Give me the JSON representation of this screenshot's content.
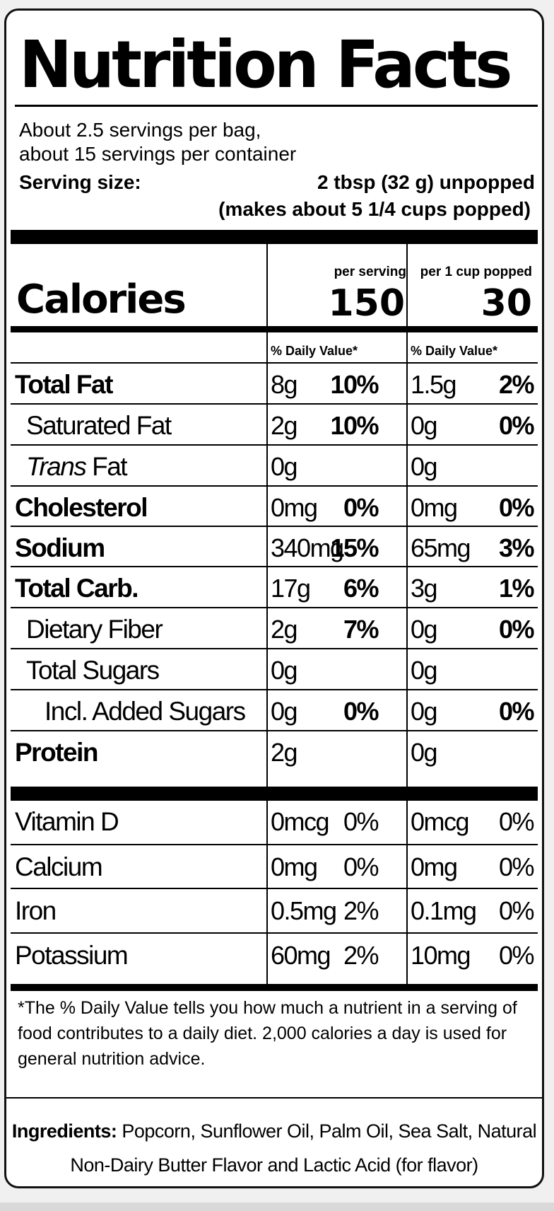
{
  "title": "Nutrition Facts",
  "servings": {
    "line1": "About 2.5 servings per bag,",
    "line2": "about 15 servings per container",
    "size_label": "Serving size:",
    "size_value": "2 tbsp (32 g) unpopped",
    "size_note": "(makes about 5 1/4 cups popped)"
  },
  "columns": {
    "per_serving": "per serving",
    "per_cup": "per 1 cup popped",
    "dv_label": "% Daily Value*"
  },
  "calories": {
    "label": "Calories",
    "per_serving": "150",
    "per_cup": "30"
  },
  "nutrients": [
    {
      "name": "Total Fat",
      "amount1": "8g",
      "dv1": "10%",
      "amount2": "1.5g",
      "dv2": "2%"
    },
    {
      "name": "Saturated Fat",
      "amount1": "2g",
      "dv1": "10%",
      "amount2": "0g",
      "dv2": "0%"
    },
    {
      "name_italic": "Trans",
      "name_rest": " Fat",
      "amount1": "0g",
      "dv1": "",
      "amount2": "0g",
      "dv2": ""
    },
    {
      "name": "Cholesterol",
      "amount1": "0mg",
      "dv1": "0%",
      "amount2": "0mg",
      "dv2": "0%"
    },
    {
      "name": "Sodium",
      "amount1": "340mg",
      "dv1": "15%",
      "amount2": "65mg",
      "dv2": "3%"
    },
    {
      "name": "Total Carb.",
      "amount1": "17g",
      "dv1": "6%",
      "amount2": "3g",
      "dv2": "1%"
    },
    {
      "name": "Dietary Fiber",
      "amount1": "2g",
      "dv1": "7%",
      "amount2": "0g",
      "dv2": "0%"
    },
    {
      "name": "Total Sugars",
      "amount1": "0g",
      "dv1": "",
      "amount2": "0g",
      "dv2": ""
    },
    {
      "name": "Incl. Added Sugars",
      "amount1": "0g",
      "dv1": "0%",
      "amount2": "0g",
      "dv2": "0%"
    },
    {
      "name": "Protein",
      "amount1": "2g",
      "dv1": "",
      "amount2": "0g",
      "dv2": ""
    }
  ],
  "vitamins": [
    {
      "name": "Vitamin D",
      "amount1": "0mcg",
      "dv1": "0%",
      "amount2": "0mcg",
      "dv2": "0%"
    },
    {
      "name": "Calcium",
      "amount1": "0mg",
      "dv1": "0%",
      "amount2": "0mg",
      "dv2": "0%"
    },
    {
      "name": "Iron",
      "amount1": "0.5mg",
      "dv1": "2%",
      "amount2": "0.1mg",
      "dv2": "0%"
    },
    {
      "name": "Potassium",
      "amount1": "60mg",
      "dv1": "2%",
      "amount2": "10mg",
      "dv2": "0%"
    }
  ],
  "footnote": "*The % Daily Value tells you how much a nutrient in a serving of food contributes to a daily diet. 2,000 calories a day is used for general nutrition advice.",
  "ingredients": {
    "label": "Ingredients:",
    "line1": "Popcorn, Sunflower Oil, Palm Oil, Sea Salt, Natural",
    "line2": "Non-Dairy Butter Flavor and Lactic Acid (for flavor)"
  }
}
